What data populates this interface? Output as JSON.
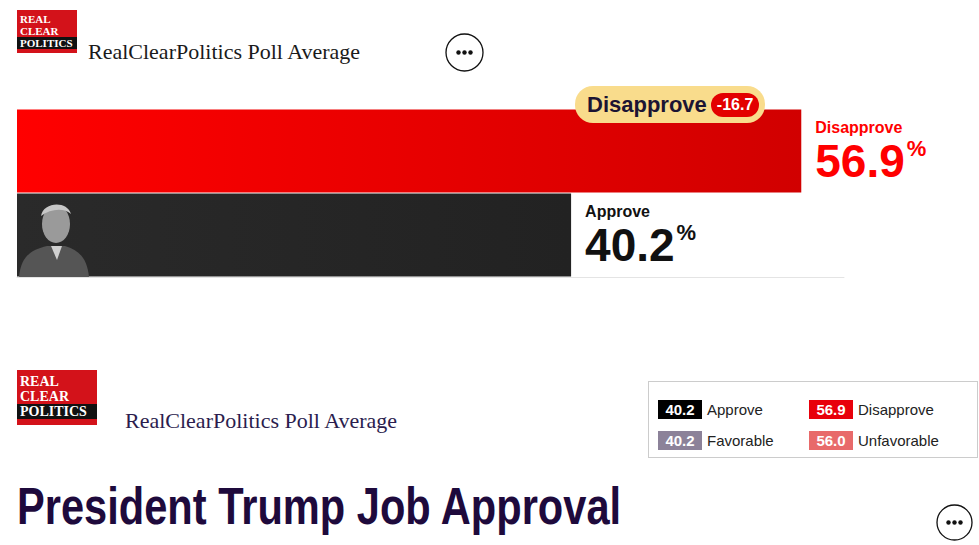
{
  "header": {
    "logo": [
      "REAL",
      "CLEAR",
      "POLITICS"
    ],
    "title": "RealClearPolitics Poll Average"
  },
  "chart_data": {
    "type": "bar",
    "orientation": "horizontal",
    "categories": [
      "Disapprove",
      "Approve"
    ],
    "values": [
      56.9,
      40.2
    ],
    "value_labels": [
      "56.9%",
      "40.2%"
    ],
    "colors": [
      "#ff0000",
      "#2a2a2a"
    ],
    "xlim": [
      0,
      60
    ],
    "tick_labels": false,
    "data_labels": true,
    "grid": false
  },
  "badge": {
    "label": "Disapprove",
    "value": -16.7
  },
  "section": {
    "logo": [
      "REAL",
      "CLEAR",
      "POLITICS"
    ],
    "title": "RealClearPolitics Poll Average",
    "summary": [
      {
        "value": "40.2",
        "label": "Approve",
        "color": "#000000"
      },
      {
        "value": "56.9",
        "label": "Disapprove",
        "color": "#e8000b"
      },
      {
        "value": "40.2",
        "label": "Favorable",
        "color": "#8c8299"
      },
      {
        "value": "56.0",
        "label": "Unfavorable",
        "color": "#e86a6a"
      }
    ],
    "heading": "President Trump Job Approval"
  }
}
